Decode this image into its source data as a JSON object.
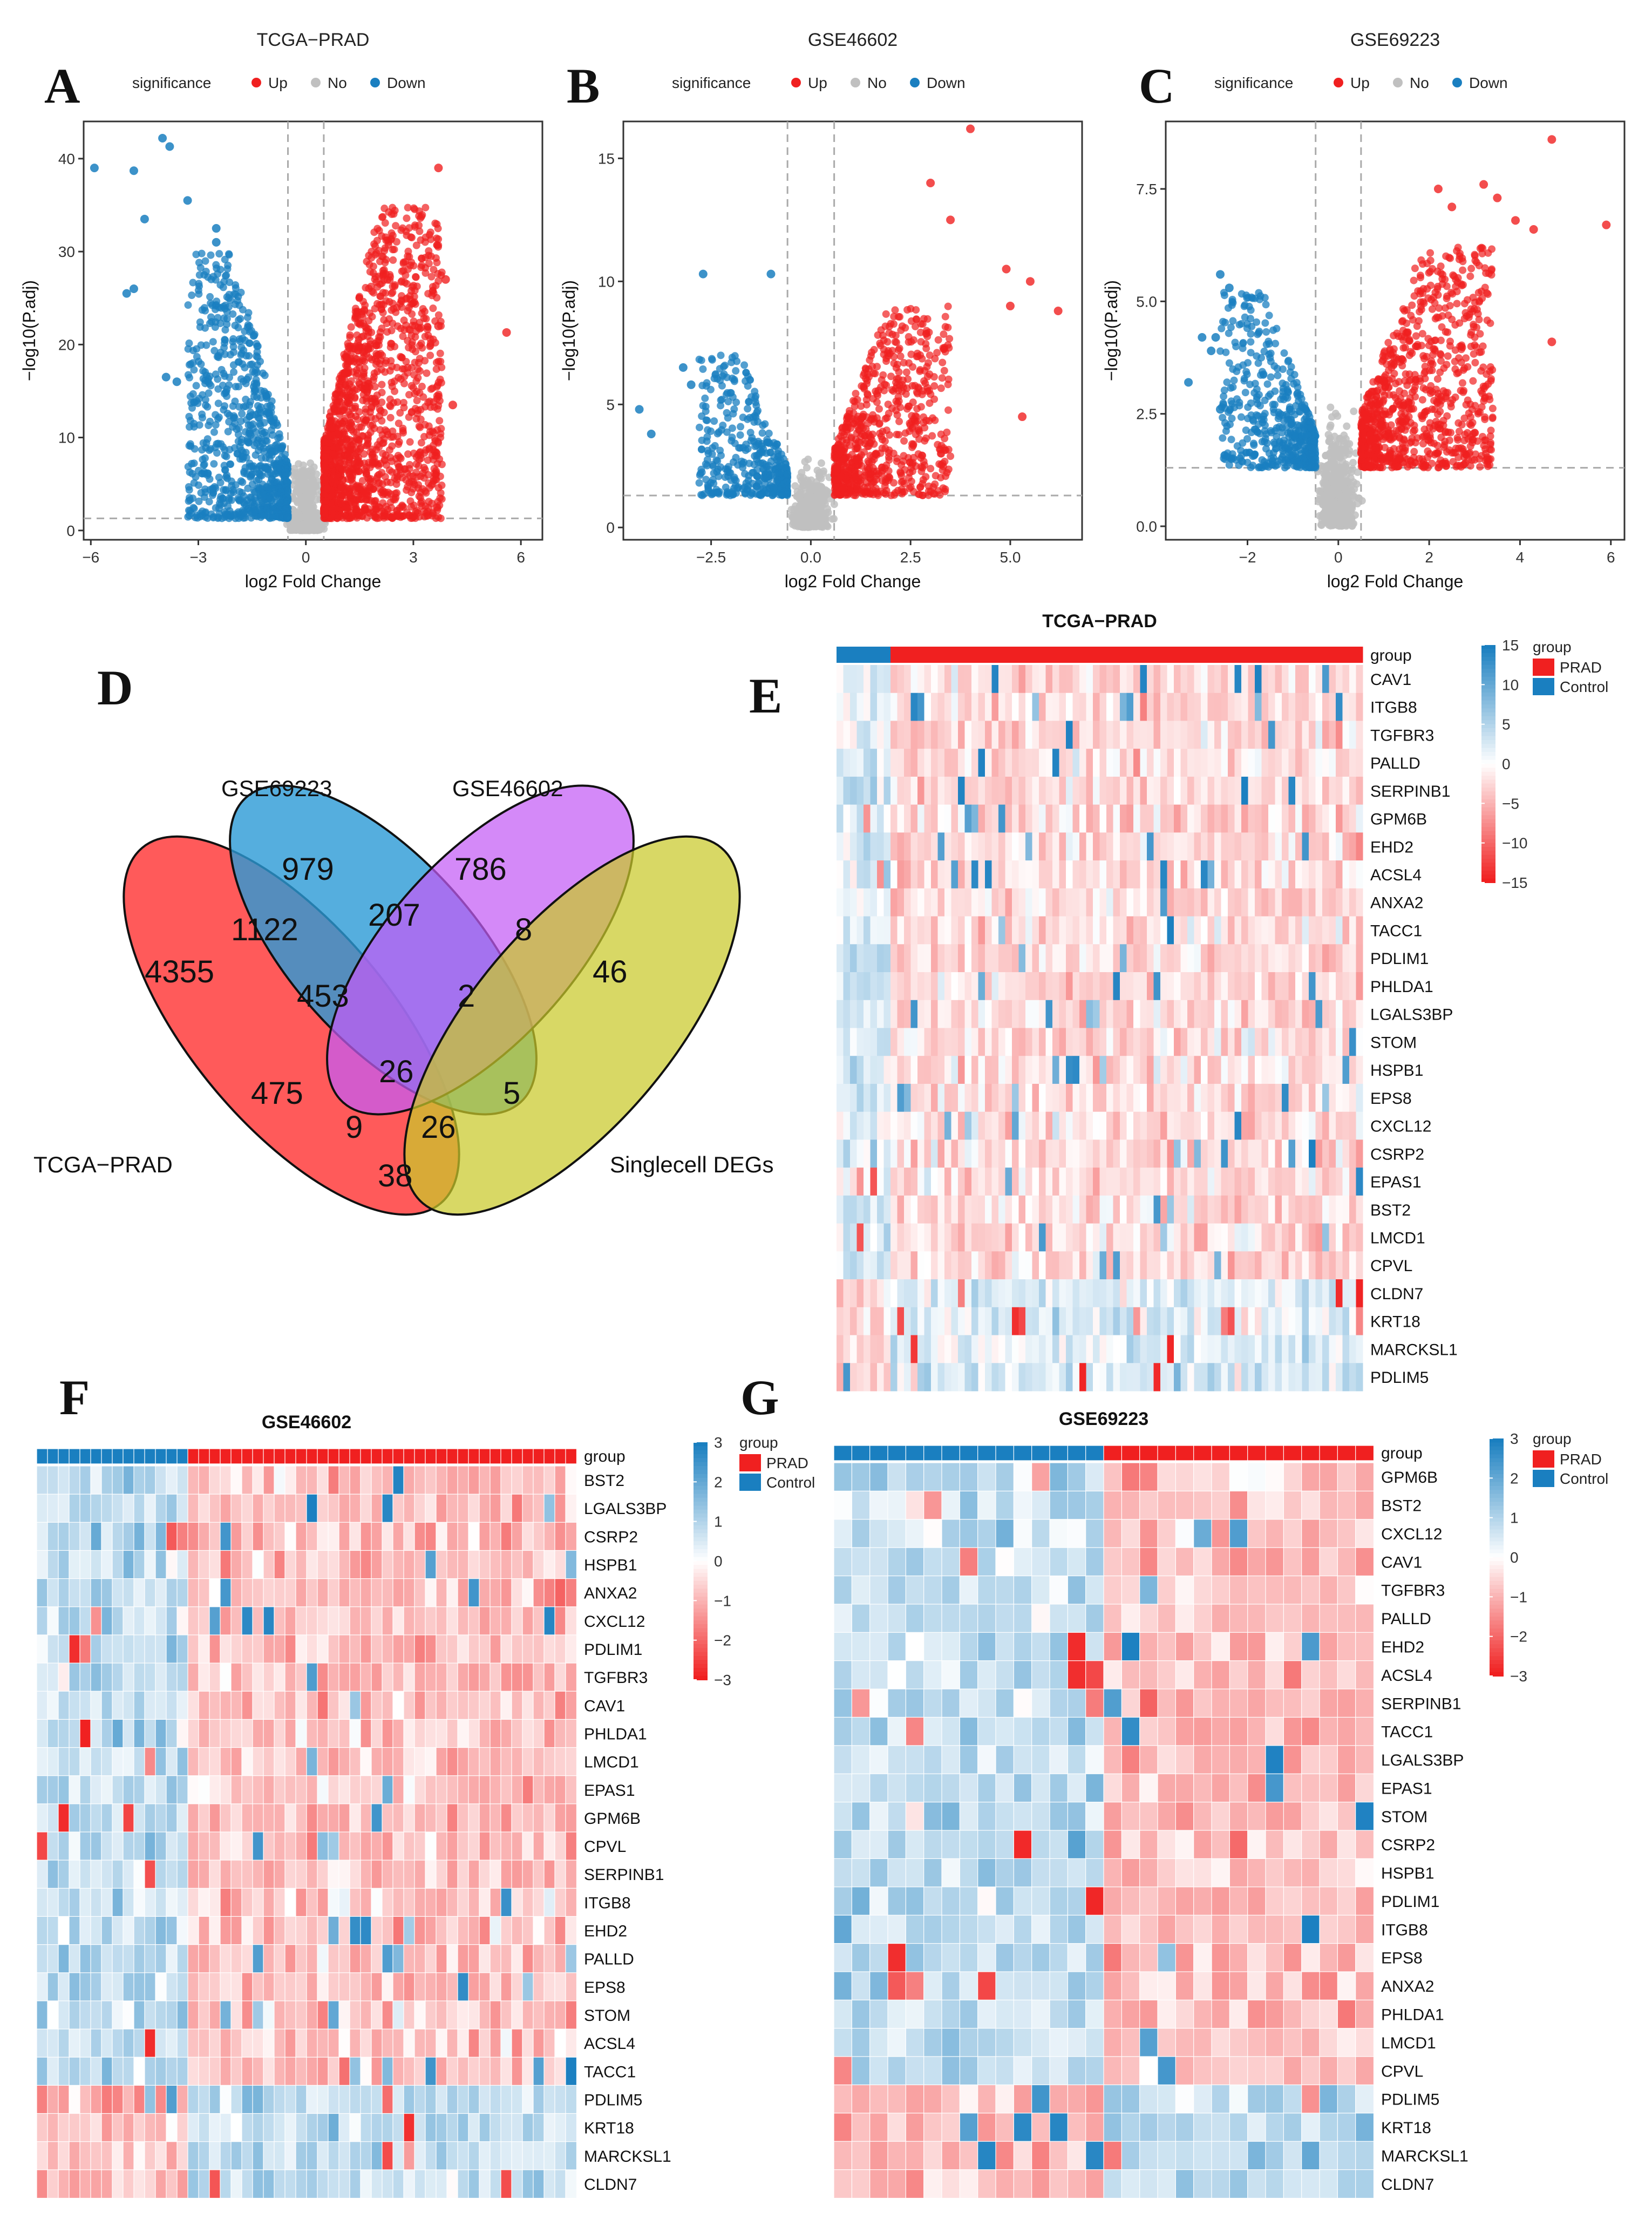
{
  "panel_labels": [
    "A",
    "B",
    "C",
    "D",
    "E",
    "F",
    "G"
  ],
  "colors": {
    "up": "#f02020",
    "no": "#c0c0c0",
    "down": "#1a7fc0",
    "prad": "#f02020",
    "control": "#1a7fc0"
  },
  "chart_data": [
    {
      "type": "scatter",
      "panel": "A",
      "title": "TCGA−PRAD",
      "xlabel": "log2 Fold Change",
      "ylabel": "−log10(P.adj)",
      "xlim": [
        -6.2,
        6.6
      ],
      "ylim": [
        -1,
        44
      ],
      "xticks": [
        -6,
        -3,
        0,
        3,
        6
      ],
      "xtick_labels": [
        "−6",
        "−3",
        "0",
        "3",
        "6"
      ],
      "yticks": [
        0,
        10,
        20,
        30,
        40
      ],
      "ytick_labels": [
        "0",
        "10",
        "20",
        "30",
        "40"
      ],
      "fc_threshold": [
        -0.5,
        0.5
      ],
      "p_threshold": 1.3,
      "legend": {
        "title": "significance",
        "items": [
          "Up",
          "No",
          "Down"
        ]
      },
      "cloud": {
        "up_xmax": 3.8,
        "up_ymax": 35,
        "down_xmin": -3.3,
        "down_ymax": 30,
        "count": 1500
      },
      "outliers": {
        "down": [
          [
            -5.9,
            39
          ],
          [
            -4.8,
            38.7
          ],
          [
            -4,
            42.2
          ],
          [
            -3.8,
            41.3
          ],
          [
            -4.5,
            33.5
          ],
          [
            -3.3,
            35.5
          ],
          [
            -5,
            25.5
          ],
          [
            -4.8,
            26
          ],
          [
            -2.5,
            31
          ],
          [
            -2.5,
            32.5
          ],
          [
            -3.9,
            16.5
          ],
          [
            -3.6,
            16
          ]
        ],
        "up": [
          [
            5.6,
            21.3
          ],
          [
            3.7,
            39
          ],
          [
            4.1,
            13.5
          ],
          [
            3.9,
            27
          ],
          [
            3.7,
            22
          ]
        ]
      }
    },
    {
      "type": "scatter",
      "panel": "B",
      "title": "GSE46602",
      "xlabel": "log2 Fold Change",
      "ylabel": "−log10(P.adj)",
      "xlim": [
        -4.7,
        6.8
      ],
      "ylim": [
        -0.5,
        16.5
      ],
      "xticks": [
        -2.5,
        0,
        2.5,
        5
      ],
      "xtick_labels": [
        "−2.5",
        "0.0",
        "2.5",
        "5.0"
      ],
      "yticks": [
        0,
        5,
        10,
        15
      ],
      "ytick_labels": [
        "0",
        "5",
        "10",
        "15"
      ],
      "fc_threshold": [
        -0.585,
        0.585
      ],
      "p_threshold": 1.3,
      "legend": {
        "title": "significance",
        "items": [
          "Up",
          "No",
          "Down"
        ]
      },
      "cloud": {
        "up_xmax": 3.5,
        "up_ymax": 9,
        "down_xmin": -2.8,
        "down_ymax": 7,
        "count": 700
      },
      "outliers": {
        "down": [
          [
            -4.3,
            4.8
          ],
          [
            -2.7,
            10.3
          ],
          [
            -1,
            10.3
          ],
          [
            -4,
            3.8
          ],
          [
            -3.2,
            6.5
          ],
          [
            -3,
            5.8
          ]
        ],
        "up": [
          [
            4,
            16.2
          ],
          [
            3,
            14
          ],
          [
            3.5,
            12.5
          ],
          [
            4.9,
            10.5
          ],
          [
            5.5,
            10
          ],
          [
            6.2,
            8.8
          ],
          [
            5.3,
            4.5
          ],
          [
            5,
            9
          ]
        ]
      }
    },
    {
      "type": "scatter",
      "panel": "C",
      "title": "GSE69223",
      "xlabel": "log2 Fold Change",
      "ylabel": "−log10(P.adj)",
      "xlim": [
        -3.8,
        6.3
      ],
      "ylim": [
        -0.3,
        9
      ],
      "xticks": [
        -2,
        0,
        2,
        4,
        6
      ],
      "xtick_labels": [
        "−2",
        "0",
        "2",
        "4",
        "6"
      ],
      "yticks": [
        0,
        2.5,
        5,
        7.5
      ],
      "ytick_labels": [
        "0.0",
        "2.5",
        "5.0",
        "7.5"
      ],
      "fc_threshold": [
        -0.5,
        0.5
      ],
      "p_threshold": 1.3,
      "legend": {
        "title": "significance",
        "items": [
          "Up",
          "No",
          "Down"
        ]
      },
      "cloud": {
        "up_xmax": 3.4,
        "up_ymax": 6.2,
        "down_xmin": -2.6,
        "down_ymax": 5.2,
        "count": 900
      },
      "outliers": {
        "down": [
          [
            -3.3,
            3.2
          ],
          [
            -3,
            4.2
          ],
          [
            -2.7,
            4.2
          ],
          [
            -2.6,
            5.6
          ],
          [
            -2.4,
            5.3
          ],
          [
            -2.6,
            2.6
          ],
          [
            -2.8,
            3.9
          ]
        ],
        "up": [
          [
            4.7,
            8.6
          ],
          [
            5.9,
            6.7
          ],
          [
            4.7,
            4.1
          ],
          [
            4.3,
            6.6
          ],
          [
            3.2,
            7.6
          ],
          [
            3.5,
            7.3
          ],
          [
            2.2,
            7.5
          ],
          [
            2.5,
            7.1
          ],
          [
            3.9,
            6.8
          ]
        ]
      }
    },
    {
      "type": "heatmap",
      "panel": "E",
      "title": "TCGA−PRAD",
      "n_control": 8,
      "n_prad": 70,
      "genes": [
        "CAV1",
        "ITGB8",
        "TGFBR3",
        "PALLD",
        "SERPINB1",
        "GPM6B",
        "EHD2",
        "ACSL4",
        "ANXA2",
        "TACC1",
        "PDLIM1",
        "PHLDA1",
        "LGALS3BP",
        "STOM",
        "HSPB1",
        "EPS8",
        "CXCL12",
        "CSRP2",
        "EPAS1",
        "BST2",
        "LMCD1",
        "CPVL",
        "CLDN7",
        "KRT18",
        "MARCKSL1",
        "PDLIM5"
      ],
      "n_up_genes": 22,
      "scale": [
        15,
        10,
        5,
        0,
        -5,
        -10,
        -15
      ],
      "scale_labels": [
        "15",
        "10",
        "5",
        "0",
        "−5",
        "−10",
        "−15"
      ],
      "vmax": 15,
      "amp": 2.8
    },
    {
      "type": "heatmap",
      "panel": "F",
      "title": "GSE46602",
      "n_control": 14,
      "n_prad": 36,
      "genes": [
        "BST2",
        "LGALS3BP",
        "CSRP2",
        "HSPB1",
        "ANXA2",
        "CXCL12",
        "PDLIM1",
        "TGFBR3",
        "CAV1",
        "PHLDA1",
        "LMCD1",
        "EPAS1",
        "GPM6B",
        "CPVL",
        "SERPINB1",
        "ITGB8",
        "EHD2",
        "PALLD",
        "EPS8",
        "STOM",
        "ACSL4",
        "TACC1",
        "PDLIM5",
        "KRT18",
        "MARCKSL1",
        "CLDN7"
      ],
      "n_up_genes": 22,
      "scale": [
        3,
        2,
        1,
        0,
        -1,
        -2,
        -3
      ],
      "scale_labels": [
        "3",
        "2",
        "1",
        "0",
        "−1",
        "−2",
        "−3"
      ],
      "vmax": 3,
      "amp": 1.0
    },
    {
      "type": "heatmap",
      "panel": "G",
      "title": "GSE69223",
      "n_control": 15,
      "n_prad": 15,
      "genes": [
        "GPM6B",
        "BST2",
        "CXCL12",
        "CAV1",
        "TGFBR3",
        "PALLD",
        "EHD2",
        "ACSL4",
        "SERPINB1",
        "TACC1",
        "LGALS3BP",
        "EPAS1",
        "STOM",
        "CSRP2",
        "HSPB1",
        "PDLIM1",
        "ITGB8",
        "EPS8",
        "ANXA2",
        "PHLDA1",
        "LMCD1",
        "CPVL",
        "PDLIM5",
        "KRT18",
        "MARCKSL1",
        "CLDN7"
      ],
      "n_up_genes": 22,
      "scale": [
        3,
        2,
        1,
        0,
        -1,
        -2,
        -3
      ],
      "scale_labels": [
        "3",
        "2",
        "1",
        "0",
        "−1",
        "−2",
        "−3"
      ],
      "vmax": 3,
      "amp": 1.0
    }
  ],
  "heatmap_legend": {
    "title": "group",
    "items": [
      "PRAD",
      "Control"
    ]
  },
  "venn": {
    "sets": [
      "TCGA−PRAD",
      "GSE69223",
      "GSE46602",
      "Singlecell DEGs"
    ],
    "counts": {
      "t_only": "4355",
      "g69_only": "979",
      "g46_only": "786",
      "sc_only": "46",
      "t_g69": "1122",
      "g69_g46": "207",
      "g46_sc": "8",
      "t_g69_g46": "453",
      "g69_g46_sc": "2",
      "all4": "26",
      "t_g46": "475",
      "g46_sc_t": "5",
      "t_g69_sc": "9",
      "g69_sc_t": "26",
      "t_sc": "38"
    }
  }
}
